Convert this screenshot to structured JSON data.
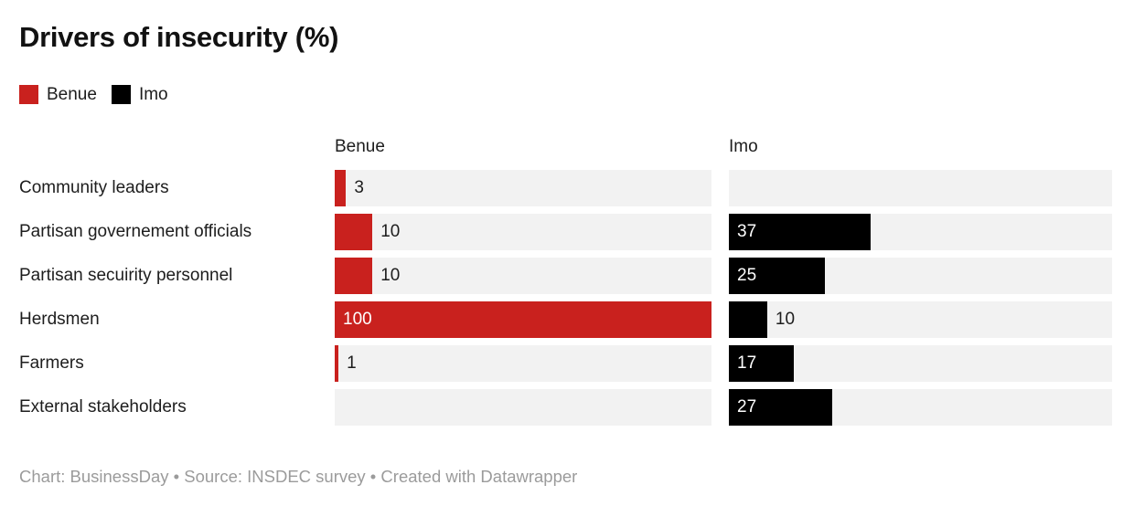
{
  "footer": "Chart: BusinessDay • Source: INSDEC survey • Created with Datawrapper",
  "colors": {
    "benue_red": "#c9211e",
    "imo_black": "#000000",
    "bar_track": "#f2f2f2",
    "text_dark": "#1d1d1d",
    "footer_gray": "#9b9b9b"
  },
  "chart_data": {
    "type": "bar",
    "variant": "split-bars-horizontal",
    "title": "Drivers of insecurity (%)",
    "categories": [
      "Community leaders",
      "Partisan governement officials",
      "Partisan secuirity personnel",
      "Herdsmen",
      "Farmers",
      "External stakeholders"
    ],
    "series": [
      {
        "name": "Benue",
        "color": "#c9211e",
        "values": [
          3,
          10,
          10,
          100,
          1,
          null
        ]
      },
      {
        "name": "Imo",
        "color": "#000000",
        "values": [
          null,
          37,
          25,
          10,
          17,
          27
        ]
      }
    ],
    "xlim": [
      0,
      100
    ],
    "grid": false,
    "value_labels": true,
    "legend_position": "top-left"
  }
}
